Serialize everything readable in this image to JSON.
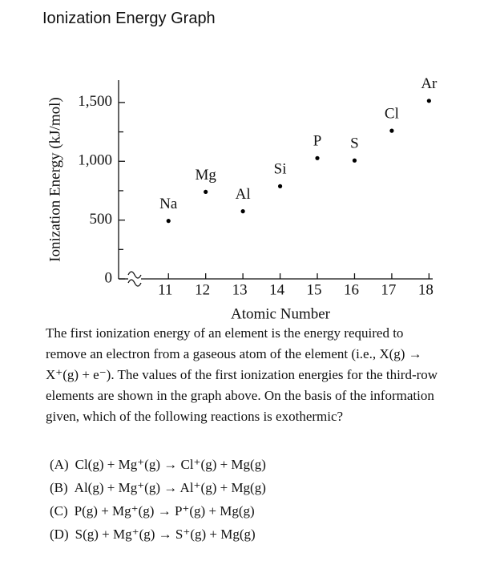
{
  "header": {
    "title": "Ionization Energy Graph"
  },
  "chart_data": {
    "type": "scatter",
    "x_label": "Atomic Number",
    "y_label": "Ionization Energy (kJ/mol)",
    "x": [
      11,
      12,
      13,
      14,
      15,
      16,
      17,
      18
    ],
    "values": [
      493,
      740,
      575,
      788,
      1027,
      1007,
      1260,
      1514
    ],
    "point_labels": [
      "Na",
      "Mg",
      "Al",
      "Si",
      "P",
      "S",
      "Cl",
      "Ar"
    ],
    "color": "#000000",
    "xlim": [
      9.66,
      18.1
    ],
    "ylim": [
      0,
      1690
    ],
    "xticks": [
      11,
      12,
      13,
      14,
      15,
      16,
      17,
      18
    ],
    "yticks": [
      0,
      500,
      {
        "value": 1000,
        "label": "1,000"
      },
      {
        "value": 1500,
        "label": "1,500"
      }
    ],
    "yminorticks": [
      250,
      750,
      1250
    ],
    "axis_break": true
  },
  "question": {
    "text": "The first ionization energy of an element is the energy required to remove an electron from a gaseous atom of the element (i.e., X(g) → X⁺(g) + e⁻). The values of the first ionization energies for the third-row elements are shown in the graph above. On the basis of the information given, which of the following reactions is exothermic?",
    "options": [
      {
        "letter": "(A)",
        "text": "Cl(g) + Mg⁺(g) → Cl⁺(g) + Mg(g)"
      },
      {
        "letter": "(B)",
        "text": "Al(g) + Mg⁺(g) → Al⁺(g) + Mg(g)"
      },
      {
        "letter": "(C)",
        "text": "P(g) + Mg⁺(g) → P⁺(g) + Mg(g)"
      },
      {
        "letter": "(D)",
        "text": "S(g) + Mg⁺(g) → S⁺(g) + Mg(g)"
      }
    ]
  }
}
